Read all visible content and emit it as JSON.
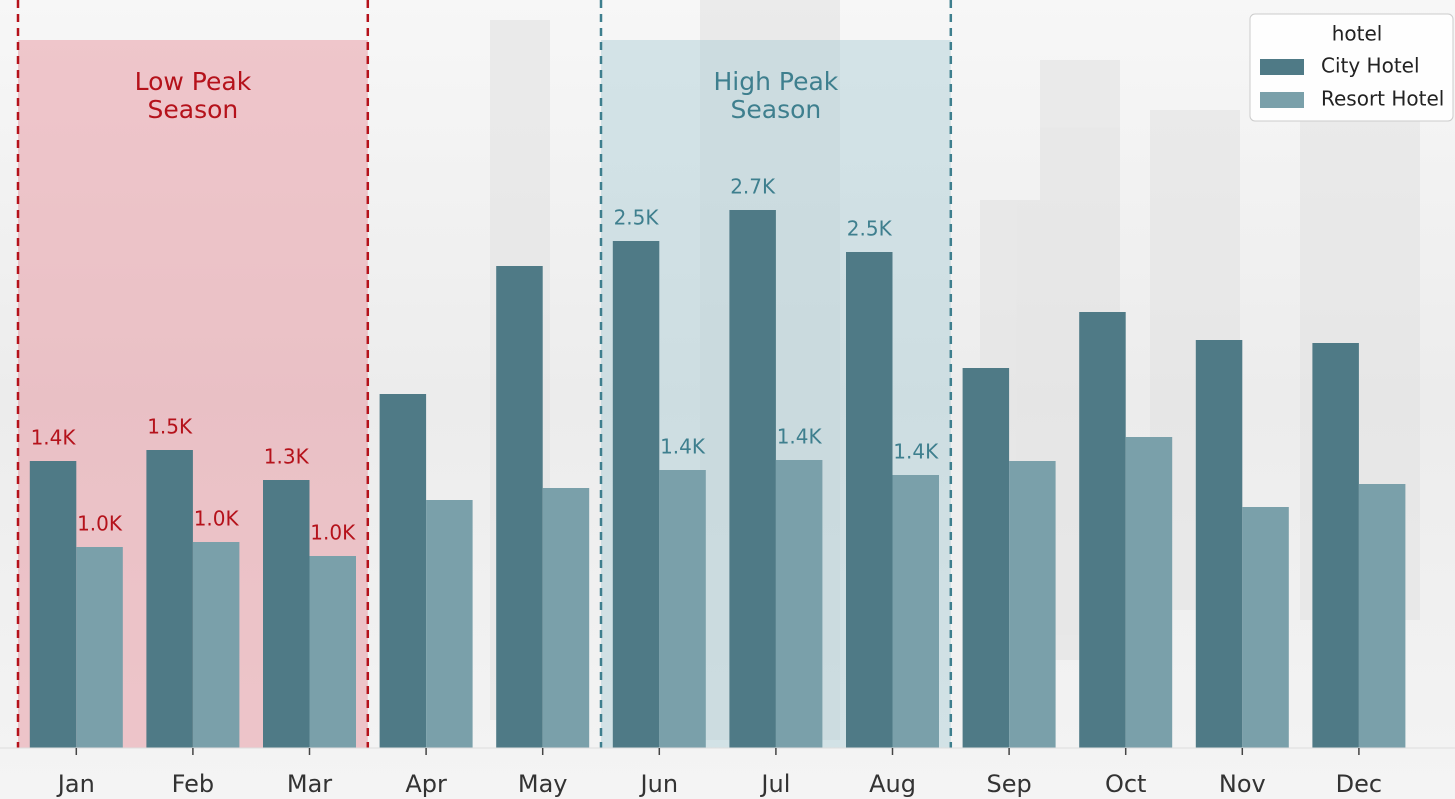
{
  "chart_data": {
    "type": "bar",
    "categories": [
      "Jan",
      "Feb",
      "Mar",
      "Apr",
      "May",
      "Jun",
      "Jul",
      "Aug",
      "Sep",
      "Oct",
      "Nov",
      "Dec"
    ],
    "series": [
      {
        "name": "City Hotel",
        "color": "#4f7a86",
        "values": [
          1435,
          1490,
          1340,
          1770,
          2410,
          2535,
          2690,
          2480,
          1900,
          2180,
          2040,
          2025
        ],
        "value_labels": [
          "1.4K",
          "1.5K",
          "1.3K",
          null,
          null,
          "2.5K",
          "2.7K",
          "2.5K",
          null,
          null,
          null,
          null
        ]
      },
      {
        "name": "Resort Hotel",
        "color": "#7aa0aa",
        "values": [
          1005,
          1030,
          960,
          1240,
          1300,
          1390,
          1440,
          1365,
          1435,
          1555,
          1205,
          1320
        ],
        "value_labels": [
          "1.0K",
          "1.0K",
          "1.0K",
          null,
          null,
          "1.4K",
          "1.4K",
          "1.4K",
          null,
          null,
          null,
          null
        ]
      }
    ],
    "legend_title": "hotel",
    "legend_position": "upper right",
    "regions": [
      {
        "text": [
          "Low Peak",
          "Season"
        ],
        "from": 0,
        "to": 2,
        "color": "#b5121b",
        "fill": "rgba(230,140,150,0.45)"
      },
      {
        "text": [
          "High Peak",
          "Season"
        ],
        "from": 5,
        "to": 7,
        "color": "#3e7f8e",
        "fill": "rgba(160,200,210,0.4)"
      }
    ]
  }
}
